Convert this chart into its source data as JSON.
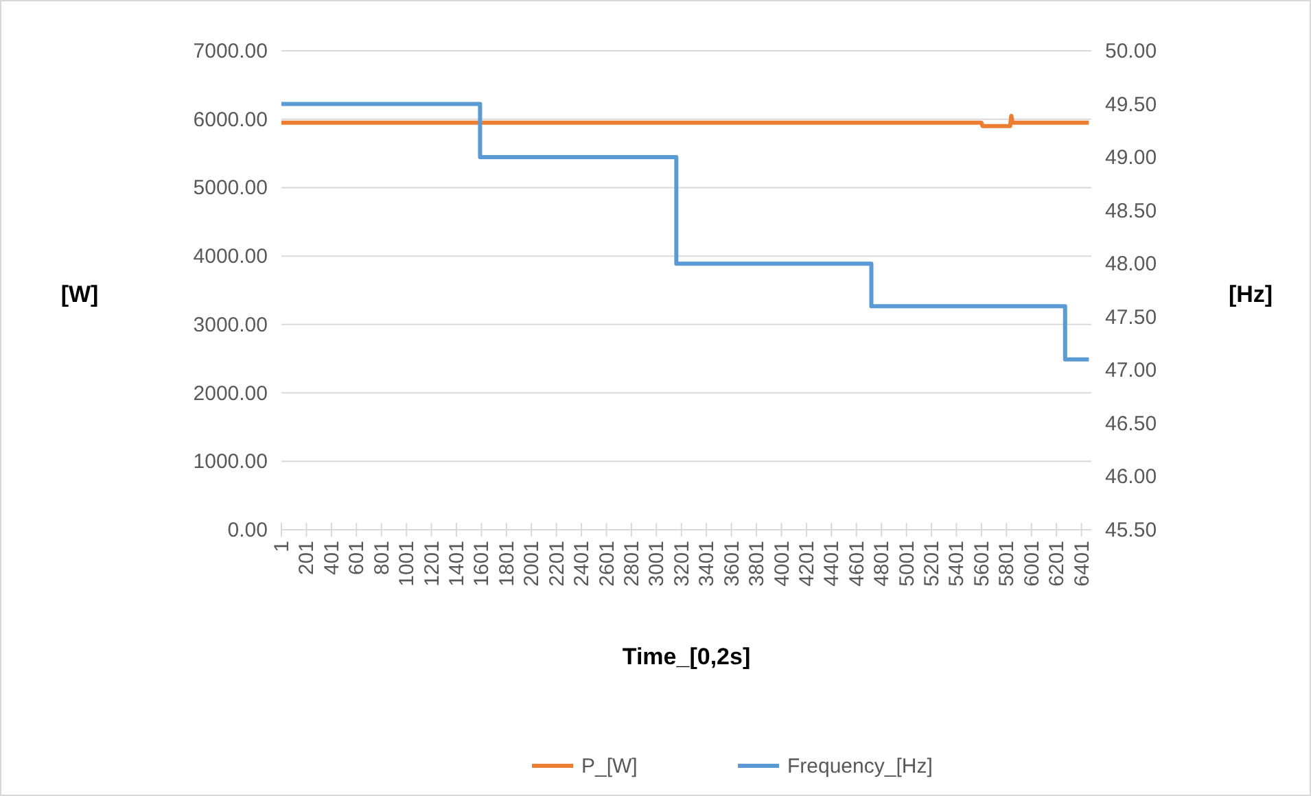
{
  "chart_data": {
    "type": "line",
    "xlabel": "Time_[0,2s]",
    "ylabel": "[W]",
    "y2label": "[Hz]",
    "xlim": [
      1,
      6480
    ],
    "xticks": [
      1,
      201,
      401,
      601,
      801,
      1001,
      1201,
      1401,
      1601,
      1801,
      2001,
      2201,
      2401,
      2601,
      2801,
      3001,
      3201,
      3401,
      3601,
      3801,
      4001,
      4201,
      4401,
      4601,
      4801,
      5001,
      5201,
      5401,
      5601,
      5801,
      6001,
      6201,
      6401
    ],
    "ylim": [
      0,
      7000
    ],
    "yticks": [
      {
        "value": 0,
        "label": "0.00"
      },
      {
        "value": 1000,
        "label": "1000.00"
      },
      {
        "value": 2000,
        "label": "2000.00"
      },
      {
        "value": 3000,
        "label": "3000.00"
      },
      {
        "value": 4000,
        "label": "4000.00"
      },
      {
        "value": 5000,
        "label": "5000.00"
      },
      {
        "value": 6000,
        "label": "6000.00"
      },
      {
        "value": 7000,
        "label": "7000.00"
      }
    ],
    "y2lim": [
      45.5,
      50
    ],
    "y2ticks": [
      {
        "value": 45.5,
        "label": "45.50"
      },
      {
        "value": 46,
        "label": "46.00"
      },
      {
        "value": 46.5,
        "label": "46.50"
      },
      {
        "value": 47,
        "label": "47.00"
      },
      {
        "value": 47.5,
        "label": "47.50"
      },
      {
        "value": 48,
        "label": "48.00"
      },
      {
        "value": 48.5,
        "label": "48.50"
      },
      {
        "value": 49,
        "label": "49.00"
      },
      {
        "value": 49.5,
        "label": "49.50"
      },
      {
        "value": 50,
        "label": "50.00"
      }
    ],
    "grid": "y",
    "legend": "bottom",
    "line_style": "solid",
    "marker": "none",
    "series": [
      {
        "name": "P_[W]",
        "color": "#ed7d31",
        "x": [
          1,
          5600,
          5610,
          5830,
          5840,
          5850,
          6460
        ],
        "values": [
          5950,
          5950,
          5900,
          5900,
          6050,
          5950,
          5950
        ]
      },
      {
        "name": "Frequency_[Hz]",
        "color": "#5b9bd5",
        "axis": "y2",
        "x": [
          1,
          1590,
          1590,
          3160,
          3160,
          4720,
          4720,
          6270,
          6270,
          6460
        ],
        "values": [
          49.5,
          49.5,
          49.0,
          49.0,
          48.0,
          48.0,
          47.6,
          47.6,
          47.1,
          47.1
        ]
      }
    ]
  }
}
